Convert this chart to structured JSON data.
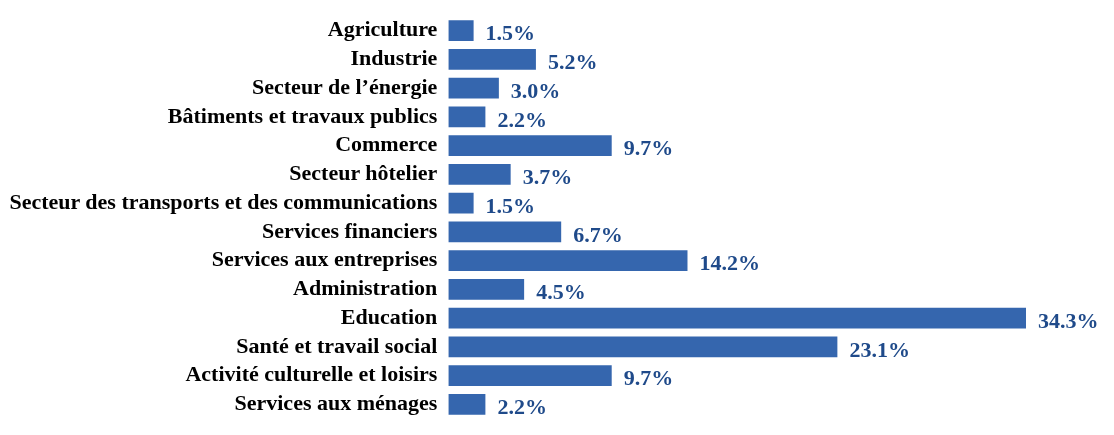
{
  "chart_data": {
    "type": "bar",
    "orientation": "horizontal",
    "categories": [
      "Agriculture",
      "Industrie",
      "Secteur de l’énergie",
      "Bâtiments et travaux publics",
      "Commerce",
      "Secteur hôtelier",
      "Secteur des transports et des communications",
      "Services financiers",
      "Services aux entreprises",
      "Administration",
      "Education",
      "Santé et travail social",
      "Activité culturelle et loisirs",
      "Services aux ménages"
    ],
    "values": [
      1.5,
      5.2,
      3.0,
      2.2,
      9.7,
      3.7,
      1.5,
      6.7,
      14.2,
      4.5,
      34.3,
      23.1,
      9.7,
      2.2
    ],
    "value_labels": [
      "1.5%",
      "5.2%",
      "3.0%",
      "2.2%",
      "9.7%",
      "3.7%",
      "1.5%",
      "6.7%",
      "14.2%",
      "4.5%",
      "34.3%",
      "23.1%",
      "9.7%",
      "2.2%"
    ],
    "color": "#3566ae",
    "legend": false,
    "tick_labels": "y"
  }
}
